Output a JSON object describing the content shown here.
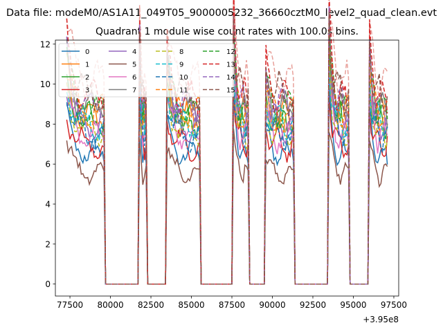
{
  "chart_data": {
    "type": "line",
    "suptitle": "Data file: modeM0/AS1A11_049T05_9000005232_36660cztM0_level2_quad_clean.evt",
    "title": "Quadrant 1 module wise count rates with 100.0s bins.",
    "xlabel": "",
    "ylabel": "",
    "x_offset_label": "+3.95e8",
    "xlim": [
      76600,
      97800
    ],
    "ylim": [
      -0.6,
      12.2
    ],
    "x_ticks": [
      77500,
      80000,
      82500,
      85000,
      87500,
      90000,
      92500,
      95000,
      97500
    ],
    "x_tick_labels": [
      "77500",
      "80000",
      "82500",
      "85000",
      "87500",
      "90000",
      "92500",
      "95000",
      "97500"
    ],
    "y_ticks": [
      0,
      2,
      4,
      6,
      8,
      10,
      12
    ],
    "y_tick_labels": [
      "0",
      "2",
      "4",
      "6",
      "8",
      "10",
      "12"
    ],
    "grid": false,
    "legend_position": "top-left",
    "legend_columns": 4,
    "on_segments": [
      {
        "start": 77300,
        "end": 79600,
        "peak": 1.3
      },
      {
        "start": 81800,
        "end": 82200,
        "peak": 1.35
      },
      {
        "start": 83500,
        "end": 85500,
        "peak": 1.25
      },
      {
        "start": 87600,
        "end": 88500,
        "peak": 1.45
      },
      {
        "start": 89600,
        "end": 91300,
        "peak": 1.15
      },
      {
        "start": 93500,
        "end": 94700,
        "peak": 1.45
      },
      {
        "start": 96000,
        "end": 97100,
        "peak": 1.3
      }
    ],
    "series": [
      {
        "name": "0",
        "color": "#1f77b4",
        "dash": "",
        "base": 6.5
      },
      {
        "name": "1",
        "color": "#ff7f0e",
        "dash": "",
        "base": 8.3
      },
      {
        "name": "2",
        "color": "#2ca02c",
        "dash": "",
        "base": 8.2
      },
      {
        "name": "3",
        "color": "#d62728",
        "dash": "",
        "base": 6.9
      },
      {
        "name": "4",
        "color": "#9467bd",
        "dash": "",
        "base": 7.9
      },
      {
        "name": "5",
        "color": "#8c564b",
        "dash": "",
        "base": 5.5
      },
      {
        "name": "6",
        "color": "#e377c2",
        "dash": "",
        "base": 7.3
      },
      {
        "name": "7",
        "color": "#7f7f7f",
        "dash": "",
        "base": 8.7
      },
      {
        "name": "8",
        "color": "#bcbd22",
        "dash": "6,3",
        "base": 7.6
      },
      {
        "name": "9",
        "color": "#17becf",
        "dash": "6,3",
        "base": 8.0
      },
      {
        "name": "10",
        "color": "#1f77b4",
        "dash": "6,3",
        "base": 7.4
      },
      {
        "name": "11",
        "color": "#ff7f0e",
        "dash": "6,3",
        "base": 8.5
      },
      {
        "name": "12",
        "color": "#2ca02c",
        "dash": "6,3",
        "base": 8.6
      },
      {
        "name": "13",
        "color": "#d62728",
        "dash": "6,3",
        "base": 9.3
      },
      {
        "name": "14",
        "color": "#9467bd",
        "dash": "6,3",
        "base": 8.9
      },
      {
        "name": "15",
        "color": "#8c564b",
        "dash": "6,3",
        "base": 9.5
      }
    ],
    "extra_series": {
      "name": "",
      "color": "#e8a09a",
      "dash": "6,3",
      "base": 10.1
    }
  }
}
